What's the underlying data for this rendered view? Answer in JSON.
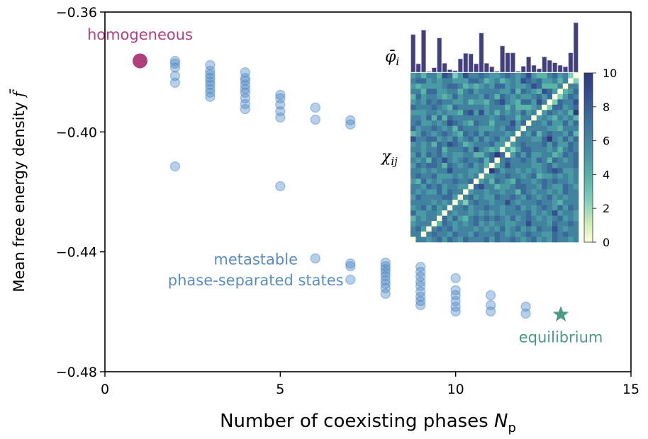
{
  "chart_data": {
    "type": "scatter",
    "xlabel": "Number of coexisting phases N_p",
    "xlabel_main": "Number of coexisting phases ",
    "xlabel_var": "N",
    "xlabel_sub": "p",
    "ylabel": "Mean free energy density f̄",
    "ylabel_main": "Mean free energy density ",
    "ylabel_var": "f̄",
    "xlim": [
      0,
      15
    ],
    "ylim": [
      -0.48,
      -0.36
    ],
    "xticks": [
      0,
      5,
      10,
      15
    ],
    "xtick_labels": [
      "0",
      "5",
      "10",
      "15"
    ],
    "yticks": [
      -0.36,
      -0.4,
      -0.44,
      -0.48
    ],
    "ytick_labels": [
      "−0.36",
      "−0.40",
      "−0.44",
      "−0.48"
    ],
    "grid": false,
    "series": [
      {
        "name": "metastable phase-separated states",
        "color": "#4a86c5",
        "marker": "circle",
        "alpha": 0.4,
        "points": [
          [
            2,
            -0.3763
          ],
          [
            2,
            -0.3772
          ],
          [
            2,
            -0.3785
          ],
          [
            2,
            -0.3813
          ],
          [
            2,
            -0.3836
          ],
          [
            2,
            -0.4115
          ],
          [
            3,
            -0.3777
          ],
          [
            3,
            -0.3796
          ],
          [
            3,
            -0.3808
          ],
          [
            3,
            -0.382
          ],
          [
            3,
            -0.3832
          ],
          [
            3,
            -0.3843
          ],
          [
            3,
            -0.3857
          ],
          [
            3,
            -0.3869
          ],
          [
            3,
            -0.3883
          ],
          [
            4,
            -0.3801
          ],
          [
            4,
            -0.382
          ],
          [
            4,
            -0.3829
          ],
          [
            4,
            -0.3843
          ],
          [
            4,
            -0.3857
          ],
          [
            4,
            -0.3869
          ],
          [
            4,
            -0.3888
          ],
          [
            4,
            -0.3907
          ],
          [
            4,
            -0.3924
          ],
          [
            5,
            -0.3876
          ],
          [
            5,
            -0.3888
          ],
          [
            5,
            -0.3909
          ],
          [
            5,
            -0.3931
          ],
          [
            5,
            -0.3952
          ],
          [
            5,
            -0.4181
          ],
          [
            6,
            -0.3919
          ],
          [
            6,
            -0.3959
          ],
          [
            6,
            -0.4422
          ],
          [
            7,
            -0.3961
          ],
          [
            7,
            -0.3975
          ],
          [
            7,
            -0.4439
          ],
          [
            7,
            -0.4448
          ],
          [
            7,
            -0.4493
          ],
          [
            8,
            -0.4436
          ],
          [
            8,
            -0.4448
          ],
          [
            8,
            -0.4458
          ],
          [
            8,
            -0.4469
          ],
          [
            8,
            -0.4481
          ],
          [
            8,
            -0.4495
          ],
          [
            8,
            -0.4507
          ],
          [
            8,
            -0.4521
          ],
          [
            8,
            -0.454
          ],
          [
            9,
            -0.445
          ],
          [
            9,
            -0.4467
          ],
          [
            9,
            -0.4483
          ],
          [
            9,
            -0.45
          ],
          [
            9,
            -0.4514
          ],
          [
            9,
            -0.4533
          ],
          [
            9,
            -0.455
          ],
          [
            9,
            -0.4564
          ],
          [
            9,
            -0.4578
          ],
          [
            10,
            -0.4488
          ],
          [
            10,
            -0.4528
          ],
          [
            10,
            -0.4545
          ],
          [
            10,
            -0.4564
          ],
          [
            10,
            -0.4583
          ],
          [
            10,
            -0.4599
          ],
          [
            11,
            -0.4545
          ],
          [
            11,
            -0.4578
          ],
          [
            11,
            -0.4599
          ],
          [
            12,
            -0.4583
          ],
          [
            12,
            -0.4606
          ]
        ]
      },
      {
        "name": "homogeneous",
        "color": "#b03f7f",
        "marker": "circle",
        "points": [
          [
            1,
            -0.3763
          ]
        ]
      },
      {
        "name": "equilibrium",
        "color": "#4a9a85",
        "marker": "star",
        "points": [
          [
            13,
            -0.4609
          ]
        ]
      }
    ],
    "annotations": [
      {
        "text": "homogeneous",
        "color": "#b03f7f",
        "x": 1,
        "y": -0.3675
      },
      {
        "text": "metastable",
        "color": "#5a8cc0",
        "x": 4.3,
        "y": -0.4425
      },
      {
        "text": "phase-separated states",
        "color": "#5a8cc0",
        "x": 4.3,
        "y": -0.4495
      },
      {
        "text": "equilibrium",
        "color": "#4a9a85",
        "x": 13,
        "y": -0.4685
      }
    ],
    "inset": {
      "bar_label_main": "φ̄",
      "bar_label_sub": "i",
      "matrix_label_main": "χ",
      "matrix_label_sub": "ij",
      "bar_color": "#423f7a",
      "phi_bar_relative": [
        0.76,
        0.17,
        0.85,
        0.01,
        0.09,
        0.69,
        0.18,
        0.05,
        0.03,
        0.27,
        0.38,
        0.37,
        0.17,
        0.79,
        0.18,
        0.11,
        0.02,
        0.53,
        0.39,
        0.39,
        0.02,
        0.12,
        0.31,
        0.14,
        0.07,
        0.31,
        0.24,
        0.19,
        0.14,
        0.11,
        0.39,
        1.0
      ],
      "colorbar": {
        "vmin": 0,
        "vmax": 10,
        "ticks": [
          0,
          2,
          4,
          6,
          8,
          10
        ],
        "tick_labels": [
          "0",
          "2",
          "4",
          "6",
          "8",
          "10"
        ],
        "colormap_stops": [
          "#ffffd9",
          "#c7e9b4",
          "#7fcdbb",
          "#5bb5a6",
          "#4a9aa5",
          "#41829f",
          "#3a6a9a",
          "#344f8f",
          "#2f3a7c"
        ]
      },
      "chi_matrix_rows": [
        "45355376247556544565457433564520",
        "56645455444665345345476564453502",
        "43444456653434546645445763335055",
        "55366445535645555446365437640346",
        "36455434645554653654544564602465",
        "45465655445344356754366475026557",
        "65556543655555455535333450266456",
        "44455454436747453545464504654538",
        "55463636555555545655355045435453",
        "56445457654365535557460554644646",
        "64556545365554445466405555443555",
        "34654565436564655545054635655463",
        "75566454645646456450555446854646",
        "45453657653455564404565556464465",
        "55455635556475434042466555453565",
        "46465645445533568604646445534656",
        "54536575456556360565565465365456",
        "46566536545645303575555445645556",
        "55454557555445086455454545676445",
        "56556444545450445565545634454545",
        "43645455655604536543655456565545",
        "55465645544067553445665546544654",
        "54544646550455455455365455454655",
        "46555566405645446556546545645455",
        "55554545042565545575455565543555",
        "45646450556455655455645456546465",
        "64455405455454545455556454574554",
        "35455064643565656546456545456454",
        "45550365454564545544557555465565",
        "56405656455545454645645465575455",
        "55056554655465556545456554465655",
        "05545646546555646556545645465545"
      ]
    }
  }
}
